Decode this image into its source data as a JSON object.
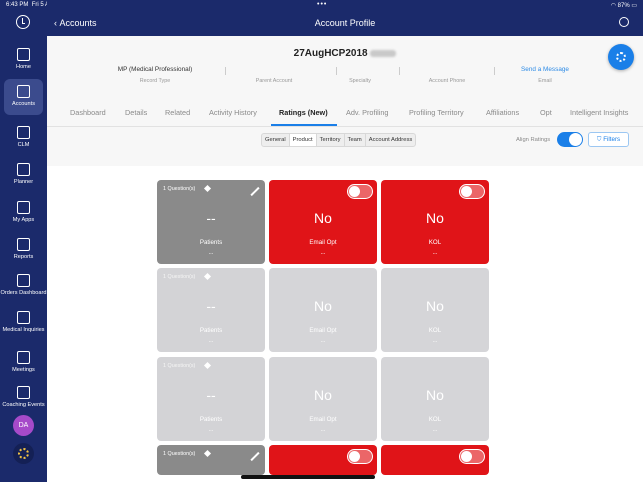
{
  "status": {
    "time": "6:43 PM",
    "date": "Fri 5 Aug",
    "center": "•••",
    "battery": "87%"
  },
  "topbar": {
    "back_label": "Accounts",
    "title": "Account Profile"
  },
  "sidebar": {
    "items": [
      {
        "label": "Home",
        "icon": "house-icon"
      },
      {
        "label": "Accounts",
        "icon": "accounts-icon",
        "active": true
      },
      {
        "label": "CLM",
        "icon": "presentation-icon"
      },
      {
        "label": "Planner",
        "icon": "calendar-icon"
      },
      {
        "label": "My Apps",
        "icon": "grid-icon"
      },
      {
        "label": "Reports",
        "icon": "bar-chart-icon"
      },
      {
        "label": "Orders Dashboard",
        "icon": "cart-icon"
      },
      {
        "label": "Medical Inquiries",
        "icon": "document-icon"
      },
      {
        "label": "Meetings",
        "icon": "people-icon"
      },
      {
        "label": "Coaching Events",
        "icon": "coaching-icon"
      }
    ],
    "avatar": "DA"
  },
  "account": {
    "name": "27AugHCP2018",
    "fields": [
      {
        "value": "MP (Medical Professional)",
        "label": "Record Type"
      },
      {
        "value": "",
        "label": "Parent Account"
      },
      {
        "value": "",
        "label": "Specialty"
      },
      {
        "value": "",
        "label": "Account Phone"
      },
      {
        "value": "Send a Message",
        "label": "Email",
        "link": true
      }
    ]
  },
  "tabs": [
    "Dashboard",
    "Details",
    "Related",
    "Activity History",
    "Ratings (New)",
    "Adv. Profiling",
    "Profiling Territory",
    "Affiliations",
    "Opt",
    "Intelligent Insights"
  ],
  "active_tab": "Ratings (New)",
  "subtabs": [
    "General",
    "Product",
    "Territory",
    "Team",
    "Account Address"
  ],
  "active_subtab": "Product",
  "align_ratings_label": "Align Ratings",
  "filters_label": "Filters",
  "grid": {
    "rows": [
      {
        "label": "",
        "cards": [
          {
            "style": "gray",
            "qcount": "1 Question(s)",
            "big": "--",
            "sub": "Patients",
            "dots": "..."
          },
          {
            "style": "red",
            "big": "No",
            "sub": "Email Opt",
            "dots": "..."
          },
          {
            "style": "red",
            "big": "No",
            "sub": "KOL",
            "dots": "..."
          }
        ]
      },
      {
        "label": "",
        "cards": [
          {
            "style": "lgray",
            "qcount": "1 Question(s)",
            "big": "--",
            "sub": "Patients",
            "dots": "..."
          },
          {
            "style": "lred",
            "big": "No",
            "sub": "Email Opt",
            "dots": "..."
          },
          {
            "style": "lred",
            "big": "No",
            "sub": "KOL",
            "dots": "..."
          }
        ]
      },
      {
        "label": "",
        "cards": [
          {
            "style": "lgray",
            "qcount": "1 Question(s)",
            "big": "--",
            "sub": "Patients",
            "dots": "..."
          },
          {
            "style": "lred",
            "big": "No",
            "sub": "Email Opt",
            "dots": "..."
          },
          {
            "style": "lred",
            "big": "No",
            "sub": "KOL",
            "dots": "..."
          }
        ]
      },
      {
        "label": "",
        "cards": [
          {
            "style": "gray",
            "qcount": "1 Question(s)",
            "big": "",
            "sub": "",
            "dots": ""
          },
          {
            "style": "red",
            "big": "",
            "sub": "",
            "dots": ""
          },
          {
            "style": "red",
            "big": "",
            "sub": "",
            "dots": ""
          }
        ]
      }
    ]
  }
}
